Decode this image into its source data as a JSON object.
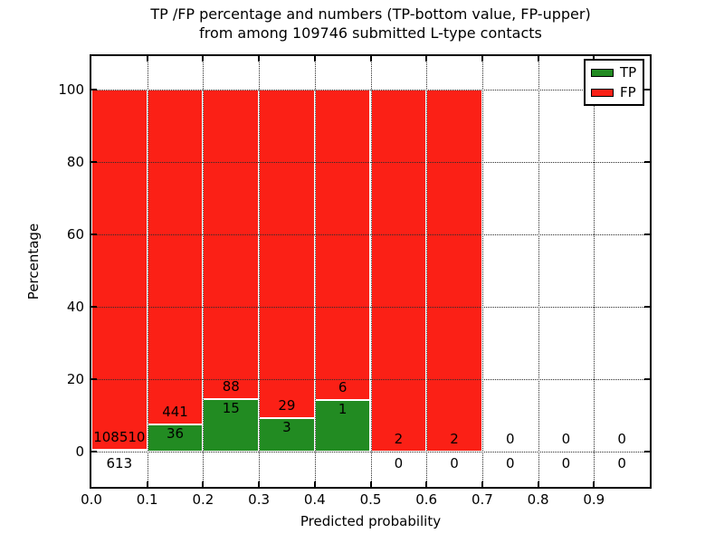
{
  "chart_data": {
    "type": "bar",
    "title_line1": "TP /FP percentage and numbers (TP-bottom value, FP-upper)",
    "title_line2": "from among 109746 submitted L-type contacts",
    "total_submitted": 109746,
    "xlabel": "Predicted probability",
    "ylabel": "Percentage",
    "x_tick_labels": [
      "0.0",
      "0.1",
      "0.2",
      "0.3",
      "0.4",
      "0.5",
      "0.6",
      "0.7",
      "0.8",
      "0.9"
    ],
    "y_tick_values": [
      0,
      20,
      40,
      60,
      80,
      100
    ],
    "xlim": [
      0.0,
      1.0
    ],
    "ylim": [
      -10,
      110
    ],
    "bin_width": 0.1,
    "grid": true,
    "legend_position": "upper right",
    "legend": [
      {
        "label": "TP",
        "color": "#228b22"
      },
      {
        "label": "FP",
        "color": "#fb2016"
      }
    ],
    "colors": {
      "tp": "#228b22",
      "fp": "#fb2016",
      "grid": "#2b2b2b",
      "text": "#000000"
    },
    "bins": [
      {
        "x0": 0.0,
        "x1": 0.1,
        "tp": 613,
        "fp": 108510
      },
      {
        "x0": 0.1,
        "x1": 0.2,
        "tp": 36,
        "fp": 441
      },
      {
        "x0": 0.2,
        "x1": 0.3,
        "tp": 15,
        "fp": 88
      },
      {
        "x0": 0.3,
        "x1": 0.4,
        "tp": 3,
        "fp": 29
      },
      {
        "x0": 0.4,
        "x1": 0.5,
        "tp": 1,
        "fp": 6
      },
      {
        "x0": 0.5,
        "x1": 0.6,
        "tp": 0,
        "fp": 2
      },
      {
        "x0": 0.6,
        "x1": 0.7,
        "tp": 0,
        "fp": 2
      },
      {
        "x0": 0.7,
        "x1": 0.8,
        "tp": 0,
        "fp": 0
      },
      {
        "x0": 0.8,
        "x1": 0.9,
        "tp": 0,
        "fp": 0
      },
      {
        "x0": 0.9,
        "x1": 1.0,
        "tp": 0,
        "fp": 0
      }
    ]
  }
}
